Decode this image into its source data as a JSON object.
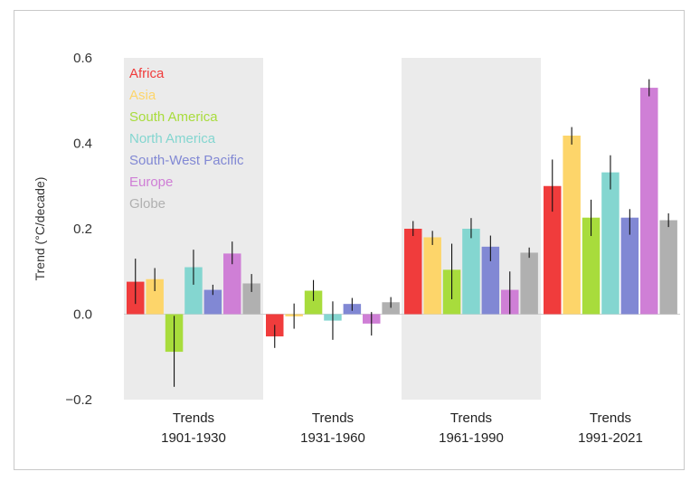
{
  "chart_data": {
    "type": "bar",
    "title": "",
    "ylabel": "Trend (°C/decade)",
    "ylim": [
      -0.2,
      0.6
    ],
    "yticks": [
      -0.2,
      0.0,
      0.2,
      0.4,
      0.6
    ],
    "ytick_labels": [
      "−0.2",
      "0.0",
      "0.2",
      "0.4",
      "0.6"
    ],
    "categories": [
      {
        "line1": "Trends",
        "line2": "1901-1930",
        "shaded": true
      },
      {
        "line1": "Trends",
        "line2": "1931-1960",
        "shaded": false
      },
      {
        "line1": "Trends",
        "line2": "1961-1990",
        "shaded": true
      },
      {
        "line1": "Trends",
        "line2": "1991-2021",
        "shaded": false
      }
    ],
    "legend_position": "top-left",
    "series": [
      {
        "name": "Africa",
        "color": "#f03c3c",
        "values": [
          0.076,
          -0.052,
          0.2,
          0.3
        ],
        "err_low": [
          0.024,
          -0.079,
          0.183,
          0.24
        ],
        "err_high": [
          0.13,
          -0.025,
          0.218,
          0.362
        ]
      },
      {
        "name": "Asia",
        "color": "#fdd56a",
        "values": [
          0.082,
          -0.005,
          0.18,
          0.418
        ],
        "err_low": [
          0.054,
          -0.034,
          0.162,
          0.397
        ],
        "err_high": [
          0.108,
          0.025,
          0.195,
          0.438
        ]
      },
      {
        "name": "South America",
        "color": "#a8dc3c",
        "values": [
          -0.088,
          0.055,
          0.104,
          0.226
        ],
        "err_low": [
          -0.17,
          0.031,
          0.035,
          0.183
        ],
        "err_high": [
          -0.004,
          0.08,
          0.165,
          0.268
        ]
      },
      {
        "name": "North America",
        "color": "#84d6d0",
        "values": [
          0.11,
          -0.015,
          0.2,
          0.332
        ],
        "err_low": [
          0.069,
          -0.06,
          0.178,
          0.292
        ],
        "err_high": [
          0.151,
          0.03,
          0.225,
          0.372
        ]
      },
      {
        "name": "South-West Pacific",
        "color": "#8188d4",
        "values": [
          0.057,
          0.024,
          0.158,
          0.226
        ],
        "err_low": [
          0.045,
          0.008,
          0.124,
          0.186
        ],
        "err_high": [
          0.069,
          0.038,
          0.184,
          0.246
        ]
      },
      {
        "name": "Europe",
        "color": "#cf7fd6",
        "values": [
          0.142,
          -0.022,
          0.057,
          0.53
        ],
        "err_low": [
          0.117,
          -0.05,
          0.0,
          0.51
        ],
        "err_high": [
          0.17,
          0.005,
          0.1,
          0.55
        ]
      },
      {
        "name": "Globe",
        "color": "#b0b0b0",
        "values": [
          0.072,
          0.028,
          0.144,
          0.22
        ],
        "err_low": [
          0.052,
          0.015,
          0.132,
          0.204
        ],
        "err_high": [
          0.094,
          0.04,
          0.156,
          0.236
        ]
      }
    ]
  }
}
